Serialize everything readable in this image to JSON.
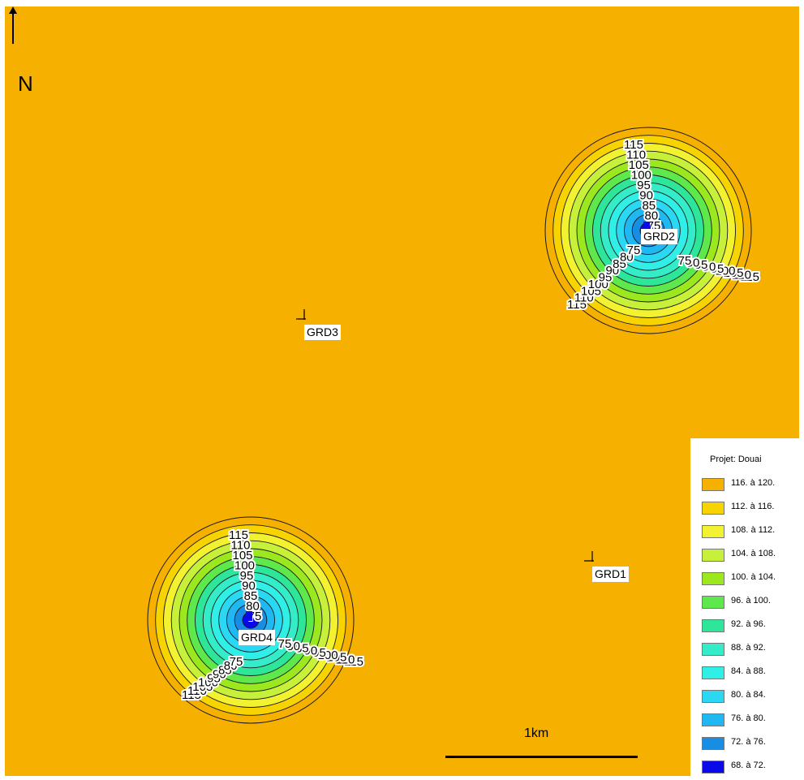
{
  "map": {
    "north_label": "N",
    "background_color": "#f5b000",
    "turbines": [
      {
        "id": "grd2",
        "label": "GRD2"
      },
      {
        "id": "grd3",
        "label": "GRD3"
      },
      {
        "id": "grd4",
        "label": "GRD4"
      },
      {
        "id": "grd1",
        "label": "GRD1"
      }
    ],
    "contour_labels": [
      "115",
      "110",
      "105",
      "100",
      "95",
      "90",
      "85",
      "80",
      "75"
    ],
    "scale_bar_label": "1km"
  },
  "legend": {
    "title": "Projet: Douai",
    "items": [
      {
        "label": "116. à 120.",
        "color": "#f5b000"
      },
      {
        "label": "112. à 116.",
        "color": "#f7d300"
      },
      {
        "label": "108. à 112.",
        "color": "#f2f230"
      },
      {
        "label": "104. à 108.",
        "color": "#c7f03a"
      },
      {
        "label": "100. à 104.",
        "color": "#9ce81f"
      },
      {
        "label": "96. à 100.",
        "color": "#5ee84c"
      },
      {
        "label": "92. à 96.",
        "color": "#2de69a"
      },
      {
        "label": "88. à 92.",
        "color": "#35ecc9"
      },
      {
        "label": "84. à 88.",
        "color": "#2fefe6"
      },
      {
        "label": "80. à 84.",
        "color": "#2ad8f3"
      },
      {
        "label": "76. à 80.",
        "color": "#1fb8f3"
      },
      {
        "label": "72. à 76.",
        "color": "#178de3"
      },
      {
        "label": "68. à 72.",
        "color": "#0a0ae8"
      }
    ]
  }
}
